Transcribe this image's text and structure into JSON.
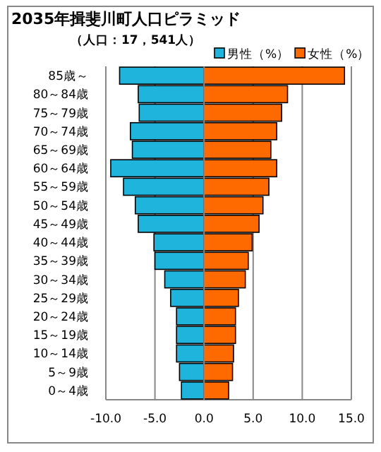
{
  "chart_data": {
    "type": "bar",
    "orientation": "horizontal",
    "stacked": true,
    "title": "2035年揖斐川町人口ピラミッド",
    "subtitle": "（人口：17，541人）",
    "categories": [
      "85歳～",
      "80～84歳",
      "75～79歳",
      "70～74歳",
      "65～69歳",
      "60～64歳",
      "55～59歳",
      "50～54歳",
      "45～49歳",
      "40～44歳",
      "35～39歳",
      "30～34歳",
      "25～29歳",
      "20～24歳",
      "15～19歳",
      "10～14歳",
      "5～9歳",
      "0～4歳"
    ],
    "series": [
      {
        "name": "男性（%）",
        "color": "#1fb4dc",
        "values": [
          -8.6,
          -6.7,
          -6.6,
          -7.5,
          -7.3,
          -9.5,
          -8.2,
          -7.0,
          -6.7,
          -5.1,
          -5.0,
          -4.0,
          -3.4,
          -2.8,
          -2.8,
          -2.8,
          -2.5,
          -2.3
        ]
      },
      {
        "name": "女性（%）",
        "color": "#ff6a00",
        "values": [
          14.3,
          8.5,
          7.9,
          7.4,
          6.8,
          7.4,
          6.6,
          6.0,
          5.6,
          4.9,
          4.5,
          4.2,
          3.5,
          3.2,
          3.2,
          3.0,
          2.9,
          2.5
        ]
      }
    ],
    "xlim": [
      -10,
      15
    ],
    "xticks": [
      {
        "value": -10,
        "label": "-10.0"
      },
      {
        "value": -5,
        "label": "-5.0"
      },
      {
        "value": 0,
        "label": "0.0"
      },
      {
        "value": 5,
        "label": "5.0"
      },
      {
        "value": 10,
        "label": "10.0"
      },
      {
        "value": 15,
        "label": "15.0"
      }
    ],
    "grid": "x",
    "legend": "top right"
  }
}
